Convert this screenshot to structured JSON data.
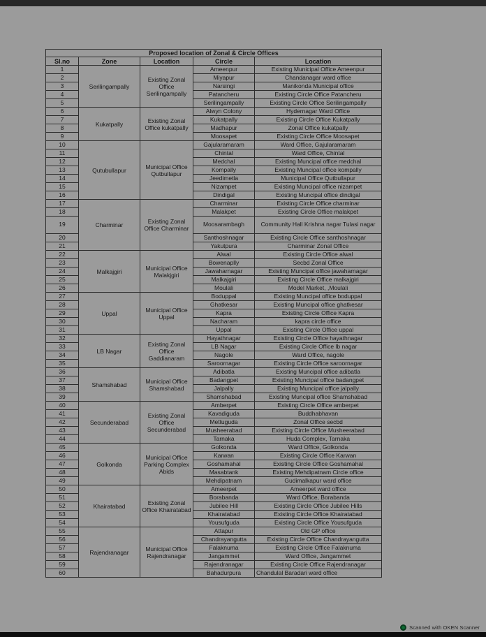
{
  "page": {
    "scanner_badge": "Scanned with OKEN Scanner"
  },
  "table": {
    "title": "Proposed location of Zonal & Circle Offices",
    "columns": [
      "Sl.no",
      "Zone",
      "Location",
      "Circle",
      "Location"
    ],
    "groups": [
      {
        "zone": "Serilingampally",
        "zone_location": "Existing Zonal Office Serilingampally",
        "rows": [
          {
            "sl": "1",
            "circle": "Ameenpur",
            "location": "Existing Municipal Office Ameenpur"
          },
          {
            "sl": "2",
            "circle": "Miyapur",
            "location": "Chandanagar ward office"
          },
          {
            "sl": "3",
            "circle": "Narsingi",
            "location": "Manikonda Municipal office"
          },
          {
            "sl": "4",
            "circle": "Patancheru",
            "location": "Existing Circle Office Patancheru"
          },
          {
            "sl": "5",
            "circle": "Serilingampally",
            "location": "Existing Circle Office Serilingampally"
          }
        ]
      },
      {
        "zone": "Kukatpally",
        "zone_location": "Existing Zonal Office kukatpally",
        "rows": [
          {
            "sl": "6",
            "circle": "Alwyn Colony",
            "location": "Hydernagar Ward Office"
          },
          {
            "sl": "7",
            "circle": "Kukatpally",
            "location": "Existing Circle Office Kukatpally"
          },
          {
            "sl": "8",
            "circle": "Madhapur",
            "location": "Zonal Office kukatpally"
          },
          {
            "sl": "9",
            "circle": "Moosapet",
            "location": "Existing Circle Office Moosapet"
          }
        ]
      },
      {
        "zone": "Qutubullapur",
        "zone_location": "Municipal Office Qutbullapur",
        "rows": [
          {
            "sl": "10",
            "circle": "Gajularamaram",
            "location": "Ward Office, Gajularamaram"
          },
          {
            "sl": "11",
            "circle": "Chintal",
            "location": "Ward Office, Chintal"
          },
          {
            "sl": "12",
            "circle": "Medchal",
            "location": "Existing Muncipal office medchal"
          },
          {
            "sl": "13",
            "circle": "Kompally",
            "location": "Existing Muncipal office kompally"
          },
          {
            "sl": "14",
            "circle": "Jeedimetla",
            "location": "Municipal Office Qutbullapur"
          },
          {
            "sl": "15",
            "circle": "Nizampet",
            "location": "Existing Muncipal office nizampet"
          },
          {
            "sl": "16",
            "circle": "Dindigal",
            "location": "Existing Muncipal office dindigal"
          }
        ]
      },
      {
        "zone": "Charminar",
        "zone_location": "Existing Zonal Office Charminar",
        "rows": [
          {
            "sl": "17",
            "circle": "Charminar",
            "location": "Existing Circle Office charminar"
          },
          {
            "sl": "18",
            "circle": "Malakpet",
            "location": "Existing Circle Office malakpet"
          },
          {
            "sl": "19",
            "circle": "Moosarambagh",
            "location": "Community Hall Krishna nagar Tulasi nagar"
          },
          {
            "sl": "20",
            "circle": "Santhoshnagar",
            "location": "Existing Circle Office santhoshnagar"
          },
          {
            "sl": "21",
            "circle": "Yakutpura",
            "location": "Charminar Zonal Office"
          }
        ]
      },
      {
        "zone": "Malkajgiri",
        "zone_location": "Municipal Office Malakjgiri",
        "rows": [
          {
            "sl": "22",
            "circle": "Alwal",
            "location": "Existing Circle Office alwal"
          },
          {
            "sl": "23",
            "circle": "Bowenaplly",
            "location": "Secbd Zonal Office"
          },
          {
            "sl": "24",
            "circle": "Jawaharnagar",
            "location": "Existing Muncipal office jawaharnagar"
          },
          {
            "sl": "25",
            "circle": "Malkajgiri",
            "location": "Existing Circle Office malkajgiri"
          },
          {
            "sl": "26",
            "circle": "Moulali",
            "location": "Model Market, ,Moulali"
          }
        ]
      },
      {
        "zone": "Uppal",
        "zone_location": "Municipal Office Uppal",
        "rows": [
          {
            "sl": "27",
            "circle": "Boduppal",
            "location": "Existing Muncipal office boduppal"
          },
          {
            "sl": "28",
            "circle": "Ghatkesar",
            "location": "Existing Muncipal office ghatkesar"
          },
          {
            "sl": "29",
            "circle": "Kapra",
            "location": "Existing Circle Office Kapra"
          },
          {
            "sl": "30",
            "circle": "Nacharam",
            "location": "kapra circle office"
          },
          {
            "sl": "31",
            "circle": "Uppal",
            "location": "Existing Circle Office uppal"
          }
        ]
      },
      {
        "zone": "LB Nagar",
        "zone_location": "Existing Zonal Office Gaddianaram",
        "rows": [
          {
            "sl": "32",
            "circle": "Hayathnagar",
            "location": "Existing Circle Office hayathnagar"
          },
          {
            "sl": "33",
            "circle": "LB Nagar",
            "location": "Existing Circle Office lb nagar"
          },
          {
            "sl": "34",
            "circle": "Nagole",
            "location": "Ward Office, nagole"
          },
          {
            "sl": "35",
            "circle": "Saroornagar",
            "location": "Existing Circle Office saroornagar"
          }
        ]
      },
      {
        "zone": "Shamshabad",
        "zone_location": "Municipal Office Shamshabad",
        "rows": [
          {
            "sl": "36",
            "circle": "Adibatla",
            "location": "Existing Muncipal office adibatla"
          },
          {
            "sl": "37",
            "circle": "Badangpet",
            "location": "Existing Muncipal office badangpet"
          },
          {
            "sl": "38",
            "circle": "Jalpally",
            "location": "Existing Muncipal office jalpally"
          },
          {
            "sl": "39",
            "circle": "Shamshabad",
            "location": "Existing Muncipal office Shamshabad"
          }
        ]
      },
      {
        "zone": "Secunderabad",
        "zone_location": "Existing Zonal Office Secunderabad",
        "rows": [
          {
            "sl": "40",
            "circle": "Amberpet",
            "location": "Existing Circle Office amberpet"
          },
          {
            "sl": "41",
            "circle": "Kavadiguda",
            "location": "Buddhabhavan"
          },
          {
            "sl": "42",
            "circle": "Mettuguda",
            "location": "Zonal Office secbd"
          },
          {
            "sl": "43",
            "circle": "Musheerabad",
            "location": "Existing Circle Office Musheerabad"
          },
          {
            "sl": "44",
            "circle": "Tarnaka",
            "location": "Huda Complex, Tarnaka"
          }
        ]
      },
      {
        "zone": "Golkonda",
        "zone_location": "Municipal Office Parking Complex Abids",
        "rows": [
          {
            "sl": "45",
            "circle": "Golkonda",
            "location": "Ward Office, Golkonda"
          },
          {
            "sl": "46",
            "circle": "Karwan",
            "location": "Existing Circle Office Karwan"
          },
          {
            "sl": "47",
            "circle": "Goshamahal",
            "location": "Existing Circle Office Goshamahal"
          },
          {
            "sl": "48",
            "circle": "Masabtank",
            "location": "Existing Mehdipatnam Circle office"
          },
          {
            "sl": "49",
            "circle": "Mehdipatnam",
            "location": "Gudimalkapur ward office"
          }
        ]
      },
      {
        "zone": "Khairatabad",
        "zone_location": "Existing Zonal Office Khairatabad",
        "rows": [
          {
            "sl": "50",
            "circle": "Ameerpet",
            "location": "Ameerpet ward office"
          },
          {
            "sl": "51",
            "circle": "Borabanda",
            "location": "Ward Office, Borabanda"
          },
          {
            "sl": "52",
            "circle": "Jubilee Hill",
            "location": "Existing Circle Office Jubilee Hills"
          },
          {
            "sl": "53",
            "circle": "Khairatabad",
            "location": "Existing Circle Office Khairatabad"
          },
          {
            "sl": "54",
            "circle": "Yousufguda",
            "location": "Existing Circle Office Yousufguda"
          }
        ]
      },
      {
        "zone": "Rajendranagar",
        "zone_location": "Municipal Office Rajendranagar",
        "rows": [
          {
            "sl": "55",
            "circle": "Attapur",
            "location": "Old GP office"
          },
          {
            "sl": "56",
            "circle": "Chandrayangutta",
            "location": "Existing Circle Office Chandrayangutta"
          },
          {
            "sl": "57",
            "circle": "Falaknuma",
            "location": "Existing Circle Office Falaknuma"
          },
          {
            "sl": "58",
            "circle": "Jangammet",
            "location": "Ward Office, Jangammet"
          },
          {
            "sl": "59",
            "circle": "Rajendranagar",
            "location": "Existing Circle Office Rajendranagar"
          },
          {
            "sl": "60",
            "circle": "Bahadurpura",
            "location": "Chandulal Baradari ward office"
          }
        ]
      }
    ]
  }
}
